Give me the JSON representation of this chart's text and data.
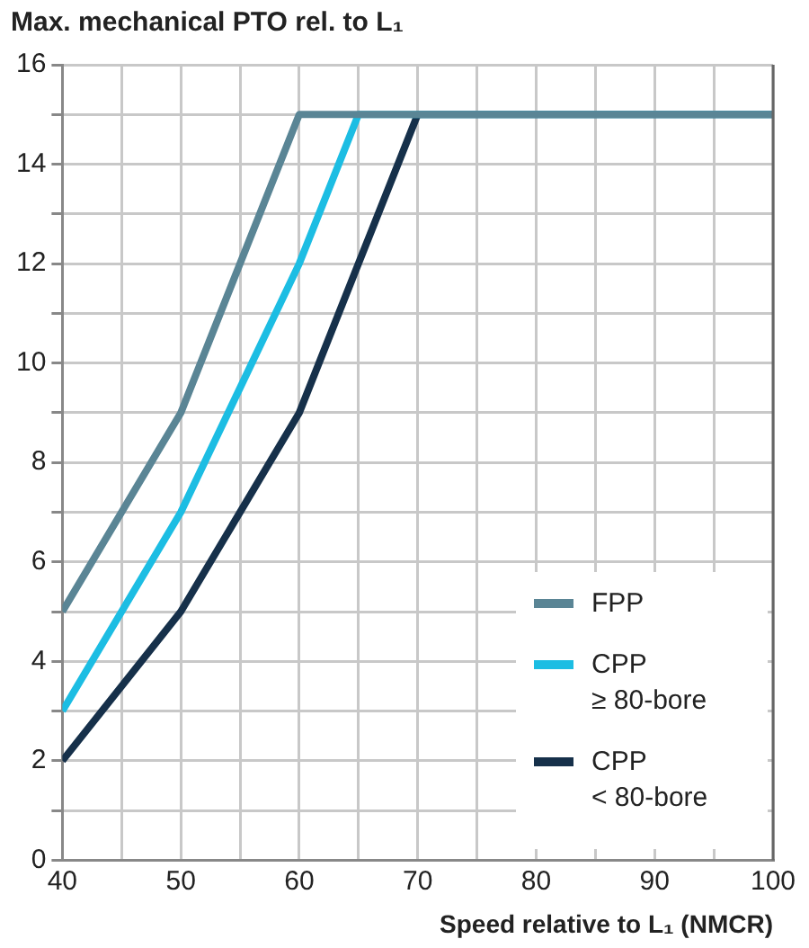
{
  "chart_data": {
    "type": "line",
    "title": "Max. mechanical PTO rel. to L₁",
    "xlabel": "Speed relative to L₁ (NMCR)",
    "x": [
      40,
      50,
      60,
      65,
      70,
      100
    ],
    "series": [
      {
        "name": "FPP",
        "color": "#5a8595",
        "values": [
          5,
          9,
          15,
          15,
          15,
          15
        ]
      },
      {
        "name": "CPP ≥ 80-bore",
        "color": "#1cbde3",
        "values": [
          3,
          7,
          12,
          15,
          15,
          15
        ]
      },
      {
        "name": "CPP < 80-bore",
        "color": "#16304a",
        "values": [
          2,
          5,
          9,
          12,
          15,
          15
        ]
      }
    ],
    "xlim": [
      40,
      100
    ],
    "xticks": [
      40,
      {
        "value": 45,
        "label": null
      },
      50,
      {
        "value": 55,
        "label": null
      },
      60,
      {
        "value": 65,
        "label": null
      },
      70,
      {
        "value": 75,
        "label": null
      },
      80,
      {
        "value": 85,
        "label": null
      },
      90,
      {
        "value": 95,
        "label": null
      },
      100
    ],
    "ylim": [
      0,
      16
    ],
    "yticks": [
      0,
      {
        "value": 1,
        "label": null
      },
      2,
      {
        "value": 3,
        "label": null
      },
      4,
      {
        "value": 5,
        "label": null
      },
      6,
      {
        "value": 7,
        "label": null
      },
      8,
      {
        "value": 9,
        "label": null
      },
      10,
      {
        "value": 11,
        "label": null
      },
      12,
      {
        "value": 13,
        "label": null
      },
      14,
      {
        "value": 15,
        "label": null
      },
      16
    ],
    "grid": true,
    "legend": "bottom right",
    "marker": "none",
    "line_style": "solid"
  }
}
